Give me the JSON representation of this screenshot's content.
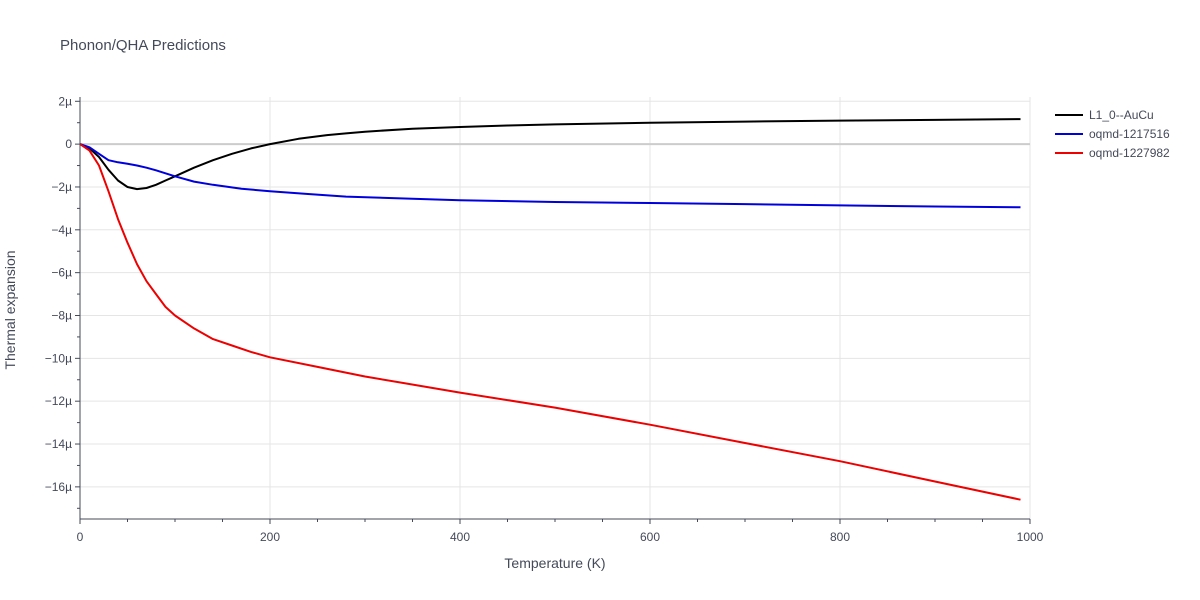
{
  "chart_data": {
    "type": "line",
    "title": "Phonon/QHA Predictions",
    "xlabel": "Temperature (K)",
    "ylabel": "Thermal expansion",
    "xlim": [
      0,
      1000
    ],
    "ylim": [
      -17.5,
      2.2
    ],
    "y_unit_scale": "µ (1e-6)",
    "x_ticks": [
      0,
      200,
      400,
      600,
      800,
      1000
    ],
    "x_tick_labels": [
      "0",
      "200",
      "400",
      "600",
      "800",
      "1000"
    ],
    "y_ticks": [
      2,
      0,
      -2,
      -4,
      -6,
      -8,
      -10,
      -12,
      -14,
      -16
    ],
    "y_tick_labels": [
      "2µ",
      "0",
      "−2µ",
      "−4µ",
      "−6µ",
      "−8µ",
      "−10µ",
      "−12µ",
      "−14µ",
      "−16µ"
    ],
    "grid": true,
    "legend_position": "right",
    "series": [
      {
        "name": "L1_0--AuCu",
        "color": "#000000",
        "x": [
          0,
          10,
          20,
          30,
          40,
          50,
          60,
          70,
          80,
          90,
          100,
          120,
          140,
          160,
          180,
          200,
          230,
          260,
          280,
          300,
          350,
          400,
          450,
          500,
          600,
          700,
          800,
          900,
          990
        ],
        "y": [
          0,
          -0.2,
          -0.6,
          -1.2,
          -1.7,
          -2.0,
          -2.1,
          -2.05,
          -1.9,
          -1.7,
          -1.5,
          -1.1,
          -0.75,
          -0.45,
          -0.2,
          0.0,
          0.25,
          0.42,
          0.5,
          0.58,
          0.72,
          0.8,
          0.87,
          0.92,
          1.0,
          1.05,
          1.1,
          1.13,
          1.17
        ]
      },
      {
        "name": "oqmd-1217516",
        "color": "#0000dd",
        "x": [
          0,
          10,
          20,
          30,
          40,
          50,
          60,
          70,
          80,
          100,
          120,
          140,
          170,
          200,
          240,
          280,
          350,
          400,
          500,
          600,
          700,
          800,
          900,
          990
        ],
        "y": [
          0,
          -0.15,
          -0.45,
          -0.75,
          -0.85,
          -0.92,
          -1.0,
          -1.1,
          -1.22,
          -1.5,
          -1.75,
          -1.9,
          -2.08,
          -2.2,
          -2.33,
          -2.45,
          -2.55,
          -2.62,
          -2.7,
          -2.75,
          -2.8,
          -2.86,
          -2.91,
          -2.95
        ]
      },
      {
        "name": "oqmd-1227982",
        "color": "#ee0000",
        "x": [
          0,
          10,
          20,
          30,
          40,
          50,
          60,
          70,
          80,
          90,
          100,
          120,
          140,
          160,
          180,
          200,
          250,
          300,
          400,
          500,
          600,
          700,
          800,
          900,
          990
        ],
        "y": [
          0,
          -0.3,
          -1.0,
          -2.2,
          -3.5,
          -4.6,
          -5.6,
          -6.4,
          -7.0,
          -7.6,
          -8.0,
          -8.6,
          -9.1,
          -9.4,
          -9.7,
          -9.95,
          -10.4,
          -10.85,
          -11.6,
          -12.3,
          -13.1,
          -13.95,
          -14.8,
          -15.75,
          -16.6
        ]
      }
    ]
  }
}
